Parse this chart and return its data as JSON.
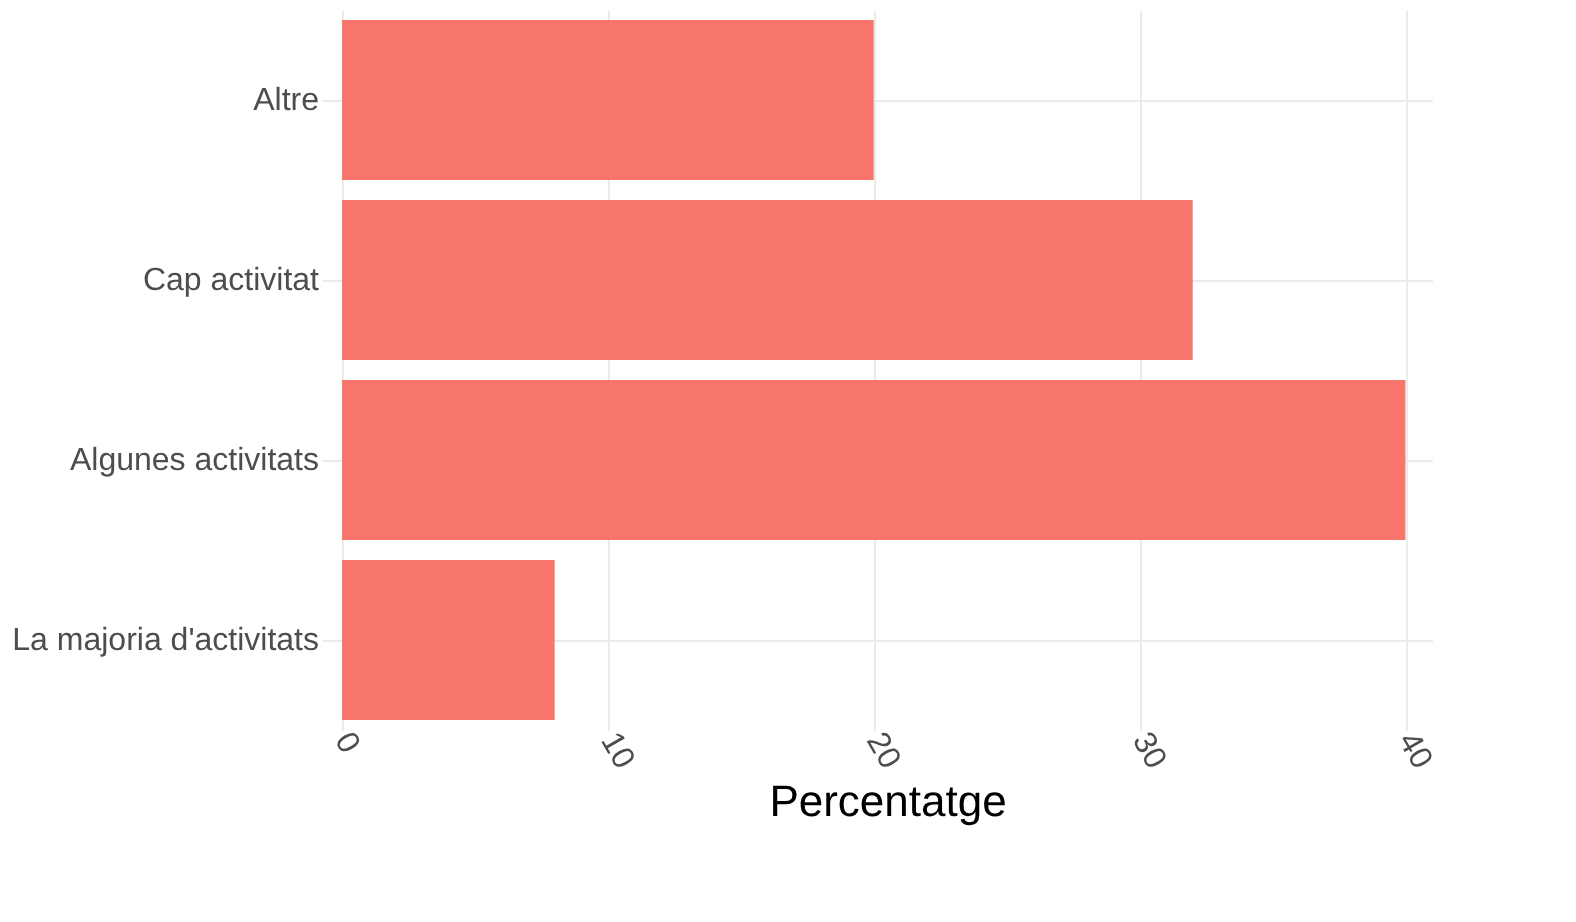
{
  "chart_data": {
    "type": "bar",
    "orientation": "horizontal",
    "xlabel": "Percentatge",
    "categories": [
      "Altre",
      "Cap activitat",
      "Algunes activitats",
      "La majoria d'activitats"
    ],
    "values": [
      20,
      32,
      40,
      8
    ],
    "color": "#f8766d",
    "xlim": [
      0,
      41
    ],
    "xticks": [
      0,
      10,
      20,
      30,
      40
    ],
    "grid": true
  }
}
